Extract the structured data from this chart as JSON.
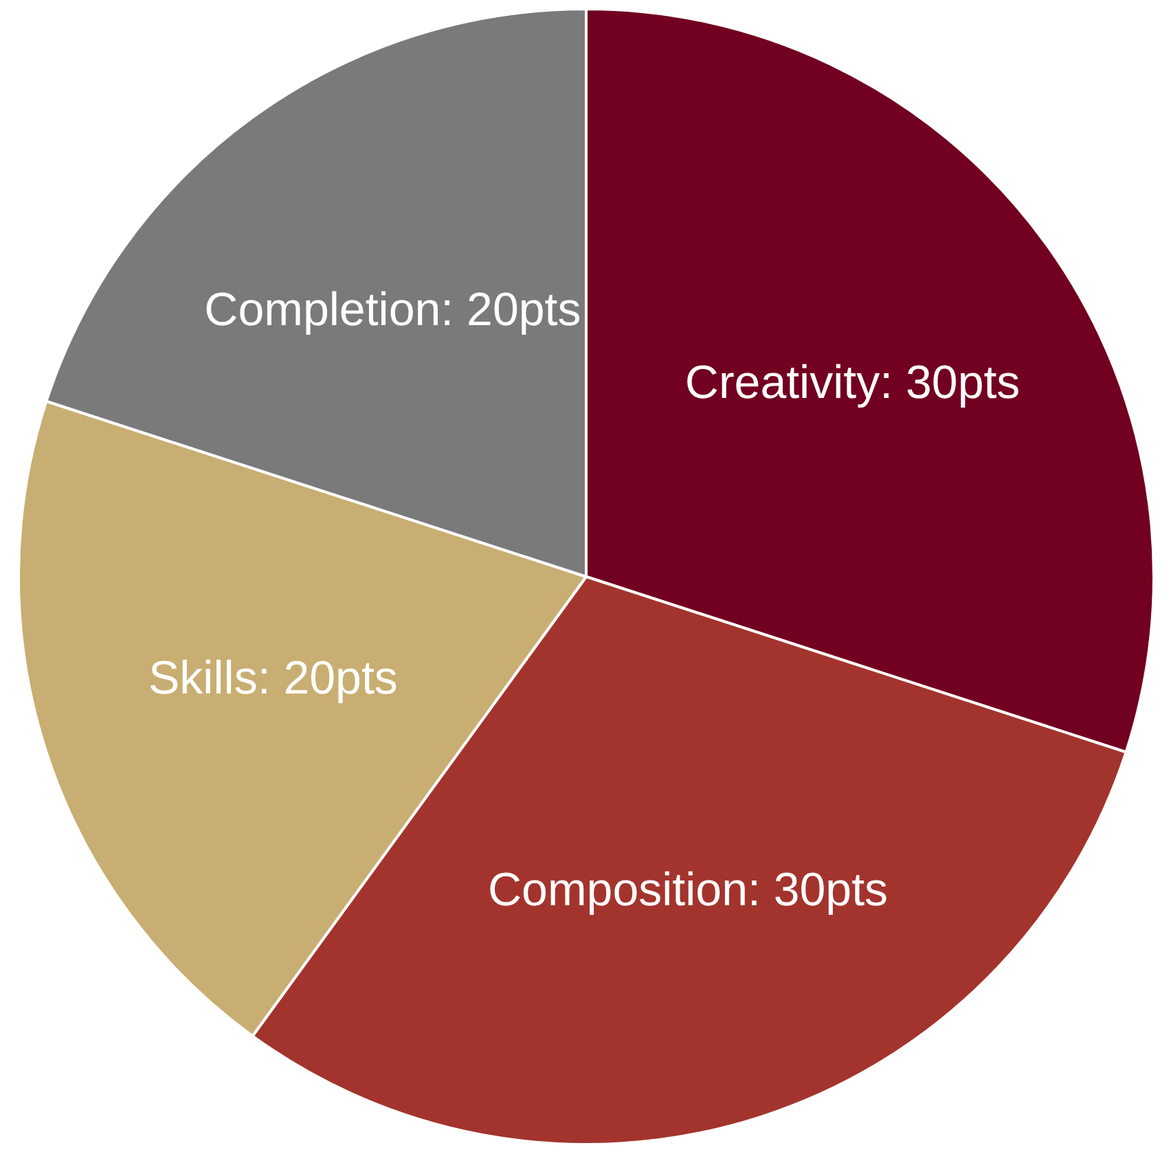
{
  "chart_data": {
    "type": "pie",
    "categories": [
      "Creativity",
      "Composition",
      "Skills",
      "Completion"
    ],
    "values": [
      30,
      30,
      20,
      20
    ],
    "value_labels": [
      "30pts",
      "30pts",
      "20pts",
      "20pts"
    ],
    "colors": [
      "#720020",
      "#a3342d",
      "#c8ae72",
      "#7a7a7a"
    ]
  }
}
